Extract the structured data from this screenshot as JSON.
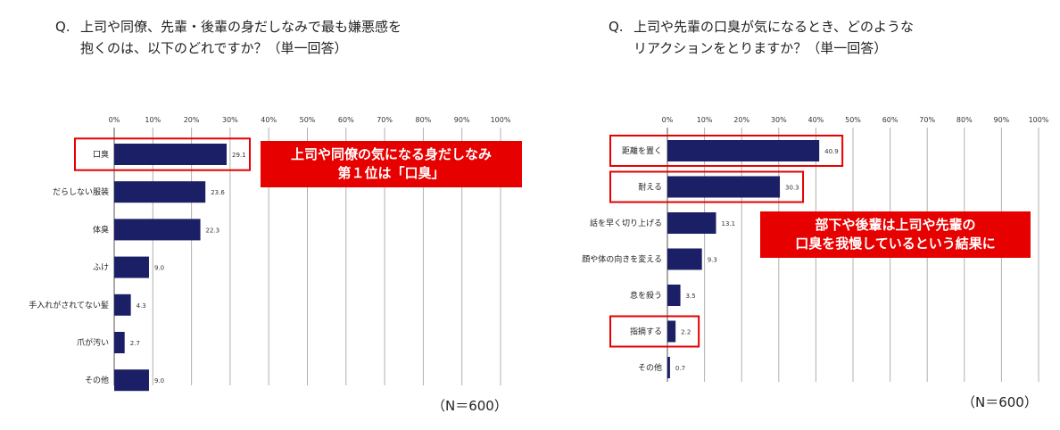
{
  "colors": {
    "bar": "#1a1f66",
    "highlight": "#e60000",
    "grid": "#b0b0b0"
  },
  "left": {
    "question_prefix": "Q.",
    "question_line1": "上司や同僚、先輩・後輩の身だしなみで最も嫌悪感を",
    "question_line2": "抱くのは、以下のどれですか？（単一回答）",
    "callout_line1": "上司や同僚の気になる身だしなみ",
    "callout_line2": "第１位は「口臭」",
    "n_label": "（N＝600）"
  },
  "right": {
    "question_prefix": "Q.",
    "question_line1": "上司や先輩の口臭が気になるとき、どのような",
    "question_line2": "リアクションをとりますか？（単一回答）",
    "callout_line1": "部下や後輩は上司や先輩の",
    "callout_line2": "口臭を我慢しているという結果に",
    "n_label": "（N＝600）"
  },
  "chart_data": [
    {
      "type": "bar",
      "orientation": "horizontal",
      "xlim": [
        0,
        100
      ],
      "x_ticks": [
        "0%",
        "10%",
        "20%",
        "30%",
        "40%",
        "50%",
        "60%",
        "70%",
        "80%",
        "90%",
        "100%"
      ],
      "categories": [
        "口臭",
        "だらしない服装",
        "体臭",
        "ふけ",
        "手入れがされてない髪",
        "爪が汚い",
        "その他"
      ],
      "values": [
        29.1,
        23.6,
        22.3,
        9.0,
        4.3,
        2.7,
        9.0
      ],
      "value_labels": [
        "29.1",
        "23.6",
        "22.3",
        "9.0",
        "4.3",
        "2.7",
        "9.0"
      ],
      "highlighted_categories": [
        "口臭"
      ],
      "grid": true
    },
    {
      "type": "bar",
      "orientation": "horizontal",
      "xlim": [
        0,
        100
      ],
      "x_ticks": [
        "0%",
        "10%",
        "20%",
        "30%",
        "40%",
        "50%",
        "60%",
        "70%",
        "80%",
        "90%",
        "100%"
      ],
      "categories": [
        "距離を置く",
        "耐える",
        "話を早く切り上げる",
        "顔や体の向きを変える",
        "息を殺う",
        "指摘する",
        "その他"
      ],
      "values": [
        40.9,
        30.3,
        13.1,
        9.3,
        3.5,
        2.2,
        0.7
      ],
      "value_labels": [
        "40.9",
        "30.3",
        "13.1",
        "9.3",
        "3.5",
        "2.2",
        "0.7"
      ],
      "highlighted_categories": [
        "距離を置く",
        "耐える",
        "指摘する"
      ],
      "grid": true
    }
  ]
}
